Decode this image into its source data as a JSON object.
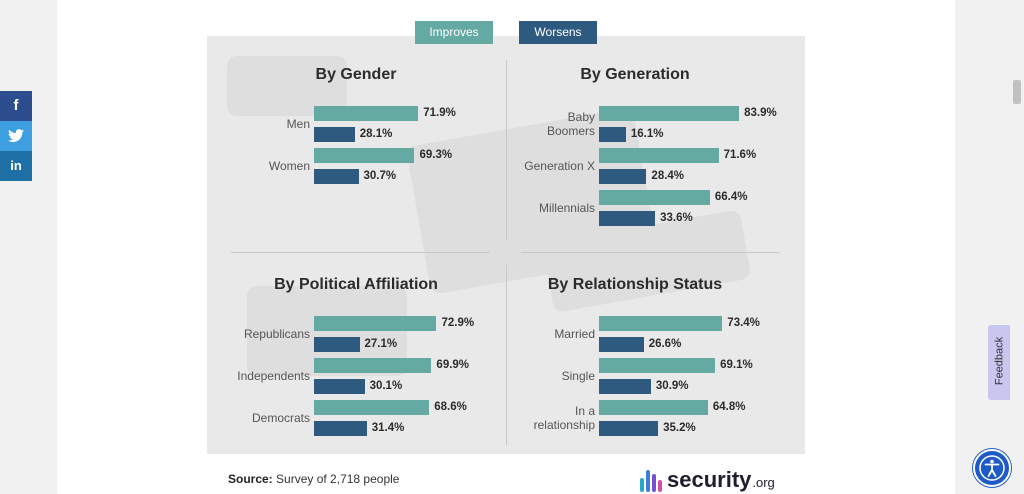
{
  "legend": {
    "improves": "Improves",
    "worsens": "Worsens"
  },
  "colors": {
    "improves": "#64a9a2",
    "worsens": "#2f5a7f"
  },
  "social": {
    "facebook": "f",
    "twitter": "t",
    "linkedin": "in"
  },
  "source": {
    "label": "Source:",
    "text": "Survey of 2,718 people"
  },
  "logo": {
    "name": "security",
    "suffix": ".org"
  },
  "feedback": "Feedback",
  "chart_data": [
    {
      "type": "bar",
      "title": "By Gender",
      "categories": [
        [
          "Men"
        ],
        [
          "Women"
        ]
      ],
      "series": [
        {
          "name": "Improves",
          "values": [
            71.9,
            69.3
          ],
          "labels": [
            "71.9%",
            "69.3%"
          ]
        },
        {
          "name": "Worsens",
          "values": [
            28.1,
            30.7
          ],
          "labels": [
            "28.1%",
            "30.7%"
          ]
        }
      ]
    },
    {
      "type": "bar",
      "title": "By Generation",
      "categories": [
        [
          "Baby",
          "Boomers"
        ],
        [
          "Generation X"
        ],
        [
          "Millennials"
        ]
      ],
      "series": [
        {
          "name": "Improves",
          "values": [
            83.9,
            71.6,
            66.4
          ],
          "labels": [
            "83.9%",
            "71.6%",
            "66.4%"
          ]
        },
        {
          "name": "Worsens",
          "values": [
            16.1,
            28.4,
            33.6
          ],
          "labels": [
            "16.1%",
            "28.4%",
            "33.6%"
          ]
        }
      ]
    },
    {
      "type": "bar",
      "title": "By Political Affiliation",
      "categories": [
        [
          "Republicans"
        ],
        [
          "Independents"
        ],
        [
          "Democrats"
        ]
      ],
      "series": [
        {
          "name": "Improves",
          "values": [
            72.9,
            69.9,
            68.6
          ],
          "labels": [
            "72.9%",
            "69.9%",
            "68.6%"
          ]
        },
        {
          "name": "Worsens",
          "values": [
            27.1,
            30.1,
            31.4
          ],
          "labels": [
            "27.1%",
            "30.1%",
            "31.4%"
          ]
        }
      ]
    },
    {
      "type": "bar",
      "title": "By Relationship Status",
      "categories": [
        [
          "Married"
        ],
        [
          "Single"
        ],
        [
          "In a",
          "relationship"
        ]
      ],
      "series": [
        {
          "name": "Improves",
          "values": [
            73.4,
            69.1,
            64.8
          ],
          "labels": [
            "73.4%",
            "69.1%",
            "64.8%"
          ]
        },
        {
          "name": "Worsens",
          "values": [
            26.6,
            30.9,
            35.2
          ],
          "labels": [
            "26.6%",
            "30.9%",
            "35.2%"
          ]
        }
      ]
    }
  ]
}
